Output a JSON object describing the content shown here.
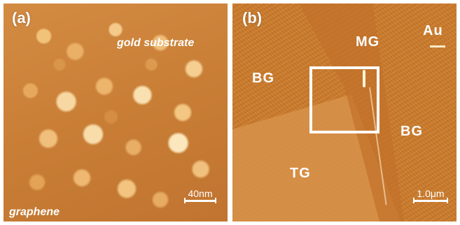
{
  "panel_a": {
    "label": "(a)",
    "region_labels": {
      "top_right": "gold substrate",
      "bottom_left": "graphene"
    },
    "scale_bar": "40nm"
  },
  "panel_b": {
    "label": "(b)",
    "region_labels": {
      "mg": "MG",
      "au": "Au",
      "bg_left": "BG",
      "bg_right": "BG",
      "tg": "TG"
    },
    "scale_bar": "1.0μm"
  },
  "colors": {
    "afm_dark": "#c07430",
    "afm_light": "#fbe6bd",
    "annotation": "#ffffff"
  }
}
